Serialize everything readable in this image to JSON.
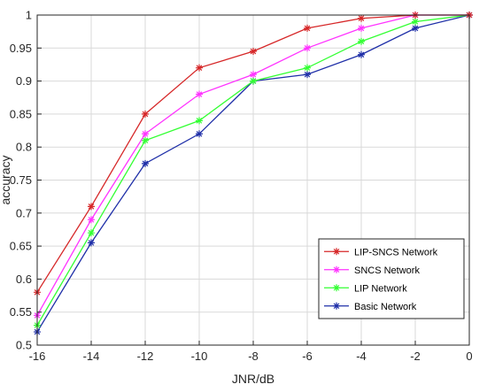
{
  "chart_data": {
    "type": "line",
    "title": "",
    "xlabel": "JNR/dB",
    "ylabel": "accuracy",
    "x": [
      -16,
      -14,
      -12,
      -10,
      -8,
      -6,
      -4,
      -2,
      0
    ],
    "xlim": [
      -16,
      0
    ],
    "ylim": [
      0.5,
      1
    ],
    "xticks": [
      -16,
      -14,
      -12,
      -10,
      -8,
      -6,
      -4,
      -2,
      0
    ],
    "yticks": [
      0.5,
      0.55,
      0.6,
      0.65,
      0.7,
      0.75,
      0.8,
      0.85,
      0.9,
      0.95,
      1
    ],
    "grid": true,
    "legend_position": "bottom-right",
    "marker": "asterisk",
    "series": [
      {
        "name": "LIP-SNCS Network",
        "color": "#d62728",
        "values": [
          0.58,
          0.71,
          0.85,
          0.92,
          0.945,
          0.98,
          0.995,
          1.0,
          1.0
        ]
      },
      {
        "name": "SNCS Network",
        "color": "#ff33ff",
        "values": [
          0.545,
          0.69,
          0.82,
          0.88,
          0.91,
          0.95,
          0.98,
          1.0,
          1.0
        ]
      },
      {
        "name": "LIP Network",
        "color": "#33ff33",
        "values": [
          0.53,
          0.67,
          0.81,
          0.84,
          0.9,
          0.92,
          0.96,
          0.99,
          1.0
        ]
      },
      {
        "name": "Basic Network",
        "color": "#1f2fa8",
        "values": [
          0.52,
          0.655,
          0.775,
          0.82,
          0.9,
          0.91,
          0.94,
          0.98,
          1.0
        ]
      }
    ]
  }
}
